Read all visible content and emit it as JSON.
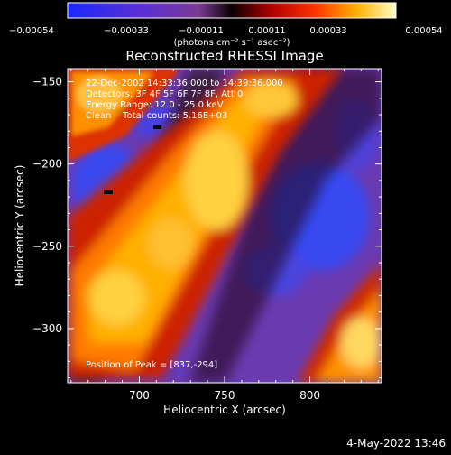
{
  "colorbar": {
    "tick_labels": [
      "−0.00054",
      "−0.00033",
      "−0.00011",
      "0.00011",
      "0.00033",
      "0.00054"
    ],
    "units_label": "(photons cm⁻² s⁻¹ asec⁻²)",
    "range": [
      -0.00054,
      0.00054
    ]
  },
  "plot": {
    "title": "Reconstructed RHESSI Image",
    "xlabel": "Heliocentric X (arcsec)",
    "ylabel": "Heliocentric Y (arcsec)",
    "xlim": [
      658,
      842
    ],
    "ylim": [
      -333,
      -142
    ],
    "x_ticks": [
      700,
      750,
      800
    ],
    "y_ticks": [
      -150,
      -200,
      -250,
      -300
    ],
    "x_tick_labels": [
      "700",
      "750",
      "800"
    ],
    "y_tick_labels": [
      "−150",
      "−200",
      "−250",
      "−300"
    ]
  },
  "annotations": {
    "time_range": "22-Dec-2002 14:33:36.000 to 14:39:36.000",
    "detectors": "Detectors: 3F 4F 5F 6F 7F 8F, Att 0",
    "energy": "Energy Range: 12.0 - 25.0 keV",
    "clean": "Clean    Total counts: 5.16E+03",
    "peak": "Position of Peak = [837,-294]"
  },
  "footer": {
    "timestamp": "4-May-2022 13:46"
  },
  "chart_data": {
    "type": "heatmap",
    "title": "Reconstructed RHESSI Image",
    "xlabel": "Heliocentric X (arcsec)",
    "ylabel": "Heliocentric Y (arcsec)",
    "xlim": [
      658,
      842
    ],
    "ylim": [
      -333,
      -142
    ],
    "color_range": [
      -0.00054,
      0.00054
    ],
    "peak_position": [
      837,
      -294
    ]
  }
}
